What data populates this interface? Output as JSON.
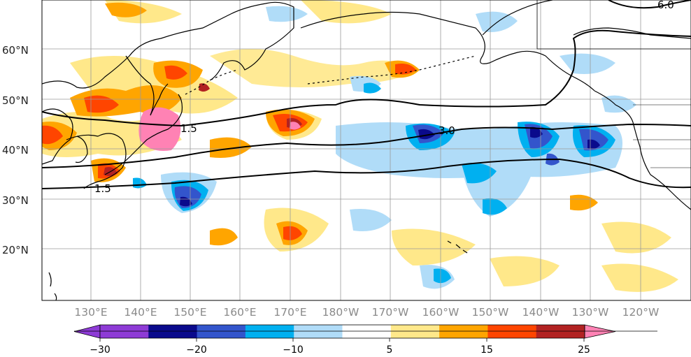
{
  "map": {
    "lat_labels": [
      "60°N",
      "50°N",
      "40°N",
      "30°N",
      "20°N"
    ],
    "lon_labels": [
      "130°E",
      "140°E",
      "150°E",
      "160°E",
      "170°E",
      "180°W",
      "170°W",
      "160°W",
      "150°W",
      "140°W",
      "130°W",
      "120°W"
    ],
    "contour_labels": [
      "3.0",
      "1.5",
      "1.5",
      "6.0"
    ]
  },
  "colorbar": {
    "tick_labels": [
      "−30",
      "−20",
      "−10",
      "5",
      "15",
      "25"
    ],
    "colors": [
      "#8e3bd6",
      "#0a0a8c",
      "#3355cc",
      "#00b0f0",
      "#b0dcf8",
      "#ffffff",
      "#ffe88a",
      "#ffa500",
      "#ff4500",
      "#b22222",
      "#ff82b4"
    ]
  }
}
